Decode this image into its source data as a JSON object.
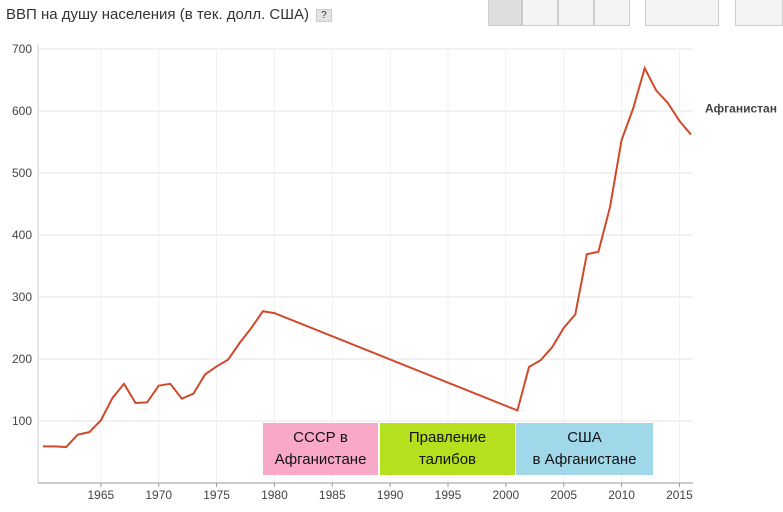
{
  "chart_data": {
    "type": "line",
    "title": "ВВП на душу населения (в тек. долл. США)",
    "help": "?",
    "x": [
      1960,
      1961,
      1962,
      1963,
      1964,
      1965,
      1966,
      1967,
      1968,
      1969,
      1970,
      1971,
      1972,
      1973,
      1974,
      1975,
      1976,
      1977,
      1978,
      1979,
      1980,
      2001,
      2002,
      2003,
      2004,
      2005,
      2006,
      2007,
      2008,
      2009,
      2010,
      2011,
      2012,
      2013,
      2014,
      2015,
      2016
    ],
    "series": [
      {
        "name": "Афганистан",
        "color": "#d04a2a",
        "values": [
          59,
          59,
          58,
          78,
          82,
          101,
          137,
          160,
          129,
          130,
          157,
          160,
          136,
          144,
          175,
          188,
          199,
          226,
          250,
          277,
          274,
          117,
          187,
          198,
          219,
          250,
          272,
          369,
          373,
          445,
          553,
          604,
          669,
          633,
          613,
          584,
          562
        ]
      }
    ],
    "xlim": [
      1960,
      2016
    ],
    "xticks": [
      1965,
      1970,
      1975,
      1980,
      1985,
      1990,
      1995,
      2000,
      2005,
      2010,
      2015
    ],
    "ylim": [
      0,
      700
    ],
    "yticks": [
      100,
      200,
      300,
      400,
      500,
      600,
      700
    ],
    "grid": true,
    "annotations": [
      {
        "lines": [
          "СССР  в",
          "Афганистане"
        ]
      },
      {
        "lines": [
          "Правление",
          "талибов"
        ]
      },
      {
        "lines": [
          "США",
          "в Афганистане"
        ]
      }
    ]
  }
}
